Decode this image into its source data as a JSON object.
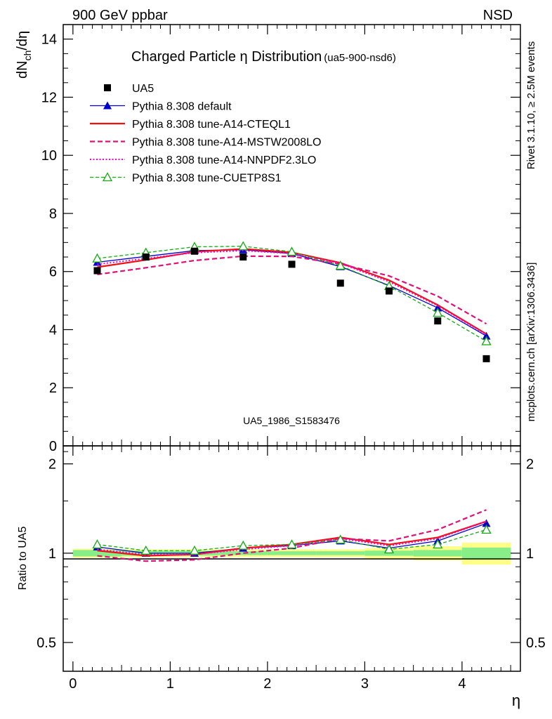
{
  "header": {
    "left": "900 GeV ppbar",
    "right": "NSD"
  },
  "side_labels": {
    "rivet": "Rivet 3.1.10, ≥ 2.5M events",
    "mcplots": "mcplots.cern.ch [arXiv:1306.3436]"
  },
  "chart_data": [
    {
      "type": "line",
      "title": "Charged Particle η Distribution",
      "subtitle": "(ua5-900-nsd6)",
      "xlabel": "η",
      "ylabel": "dNch/dη",
      "ylabel_main": "dN",
      "ylabel_sub": "ch",
      "ylabel_tail": "/dη",
      "xlim": [
        -0.1,
        4.6
      ],
      "ylim": [
        0,
        14.5
      ],
      "y_ticks": [
        "0",
        "2",
        "4",
        "6",
        "8",
        "10",
        "12",
        "14"
      ],
      "x_ticks": [
        "0",
        "1",
        "2",
        "3",
        "4"
      ],
      "watermark": "UA5_1986_S1583476",
      "legend_position": "top-left",
      "x": [
        0.25,
        0.75,
        1.25,
        1.75,
        2.25,
        2.75,
        3.25,
        3.75,
        4.25
      ],
      "series": [
        {
          "name": "UA5",
          "style": "data",
          "color": "#000000",
          "values": [
            6.03,
            6.5,
            6.7,
            6.5,
            6.25,
            5.6,
            5.33,
            4.3,
            3.0
          ]
        },
        {
          "name": "Pythia 8.308 default",
          "style": "line-triangle",
          "color": "#0000cc",
          "values": [
            6.32,
            6.52,
            6.72,
            6.75,
            6.62,
            6.17,
            5.52,
            4.75,
            3.78
          ]
        },
        {
          "name": "Pythia 8.308 tune-A14-CTEQL1",
          "style": "solid",
          "color": "#ee1111",
          "values": [
            6.15,
            6.4,
            6.68,
            6.78,
            6.66,
            6.3,
            5.7,
            4.85,
            3.85
          ]
        },
        {
          "name": "Pythia 8.308 tune-A14-MSTW2008LO",
          "style": "dashed",
          "color": "#e0107a",
          "values": [
            5.9,
            6.13,
            6.38,
            6.53,
            6.52,
            6.26,
            5.85,
            5.15,
            4.2
          ]
        },
        {
          "name": "Pythia 8.308 tune-A14-NNPDF2.3LO",
          "style": "dotted",
          "color": "#ff00cc",
          "values": [
            6.25,
            6.45,
            6.65,
            6.72,
            6.62,
            6.28,
            5.65,
            4.82,
            3.83
          ]
        },
        {
          "name": "Pythia 8.308 tune-CUETP8S1",
          "style": "dashed-open-triangle",
          "color": "#11aa11",
          "values": [
            6.45,
            6.65,
            6.85,
            6.87,
            6.68,
            6.2,
            5.5,
            4.58,
            3.6
          ]
        }
      ]
    },
    {
      "type": "line",
      "ylabel": "Ratio to UA5",
      "ylim_log": [
        0.4,
        2.3
      ],
      "y_ticks": [
        {
          "value": 0.5,
          "label": "0.5"
        },
        {
          "value": 1,
          "label": "1"
        },
        {
          "value": 2,
          "label": "2"
        }
      ],
      "bands": {
        "edges": [
          0,
          0.5,
          1,
          1.5,
          2,
          2.5,
          3,
          3.5,
          4,
          4.5
        ],
        "total_err": [
          0.035,
          0.03,
          0.03,
          0.03,
          0.03,
          0.03,
          0.04,
          0.055,
          0.085
        ],
        "stat_err": [
          0.025,
          0.02,
          0.018,
          0.015,
          0.015,
          0.015,
          0.02,
          0.025,
          0.045
        ],
        "outer_color": "#ffff88",
        "inner_color": "#88ee88"
      },
      "series": [
        {
          "name": "Pythia 8.308 default",
          "values": [
            1.05,
            1.0,
            1.0,
            1.04,
            1.06,
            1.1,
            1.04,
            1.1,
            1.26
          ]
        },
        {
          "name": "Pythia 8.308 tune-A14-CTEQL1",
          "values": [
            1.02,
            0.98,
            0.99,
            1.04,
            1.07,
            1.13,
            1.07,
            1.13,
            1.28
          ]
        },
        {
          "name": "Pythia 8.308 tune-A14-MSTW2008LO",
          "values": [
            0.98,
            0.94,
            0.95,
            1.0,
            1.04,
            1.12,
            1.1,
            1.2,
            1.4
          ]
        },
        {
          "name": "Pythia 8.308 tune-A14-NNPDF2.3LO",
          "values": [
            1.03,
            0.99,
            0.99,
            1.03,
            1.06,
            1.12,
            1.06,
            1.12,
            1.28
          ]
        },
        {
          "name": "Pythia 8.308 tune-CUETP8S1",
          "values": [
            1.07,
            1.02,
            1.02,
            1.06,
            1.07,
            1.11,
            1.03,
            1.07,
            1.2
          ]
        }
      ]
    }
  ]
}
